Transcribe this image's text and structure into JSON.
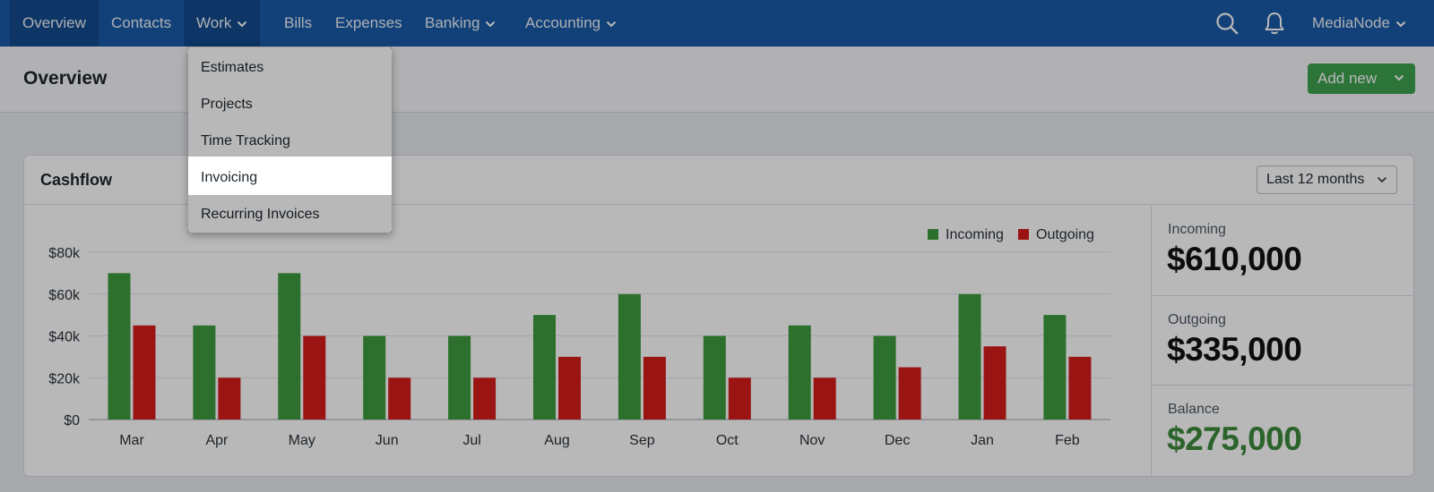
{
  "nav": {
    "items": [
      {
        "label": "Overview",
        "has_chevron": false
      },
      {
        "label": "Contacts",
        "has_chevron": false
      },
      {
        "label": "Work",
        "has_chevron": true
      },
      {
        "label": "Bills",
        "has_chevron": false
      },
      {
        "label": "Expenses",
        "has_chevron": false
      },
      {
        "label": "Banking",
        "has_chevron": true
      },
      {
        "label": "Accounting",
        "has_chevron": true
      }
    ],
    "account_label": "MediaNode",
    "icons": {
      "search": "search-icon",
      "notifications": "bell-icon"
    }
  },
  "work_menu": {
    "items": [
      "Estimates",
      "Projects",
      "Time Tracking",
      "Invoicing",
      "Recurring Invoices"
    ],
    "highlighted": "Invoicing"
  },
  "header": {
    "title": "Overview",
    "add_new_label": "Add new"
  },
  "cashflow": {
    "title": "Cashflow",
    "period": "Last 12 months",
    "stats": [
      {
        "label": "Incoming",
        "value": "$610,000"
      },
      {
        "label": "Outgoing",
        "value": "$335,000"
      },
      {
        "label": "Balance",
        "value": "$275,000"
      }
    ]
  },
  "colors": {
    "nav_bg": "#1a5aa8",
    "incoming": "#3f9c3f",
    "outgoing": "#d61c1c",
    "add_new": "#3fa14f",
    "balance_text": "#3d8a3c"
  },
  "chart_data": {
    "type": "bar",
    "categories": [
      "Mar",
      "Apr",
      "May",
      "Jun",
      "Jul",
      "Aug",
      "Sep",
      "Oct",
      "Nov",
      "Dec",
      "Jan",
      "Feb"
    ],
    "series": [
      {
        "name": "Incoming",
        "values": [
          70000,
          45000,
          70000,
          40000,
          40000,
          50000,
          60000,
          40000,
          45000,
          40000,
          60000,
          50000
        ]
      },
      {
        "name": "Outgoing",
        "values": [
          45000,
          20000,
          40000,
          20000,
          20000,
          30000,
          30000,
          20000,
          20000,
          25000,
          35000,
          30000
        ]
      }
    ],
    "yticks": [
      "$0",
      "$20k",
      "$40k",
      "$60k",
      "$80k"
    ],
    "ylim": [
      0,
      80000
    ],
    "grid": true,
    "legend": "top-right"
  }
}
